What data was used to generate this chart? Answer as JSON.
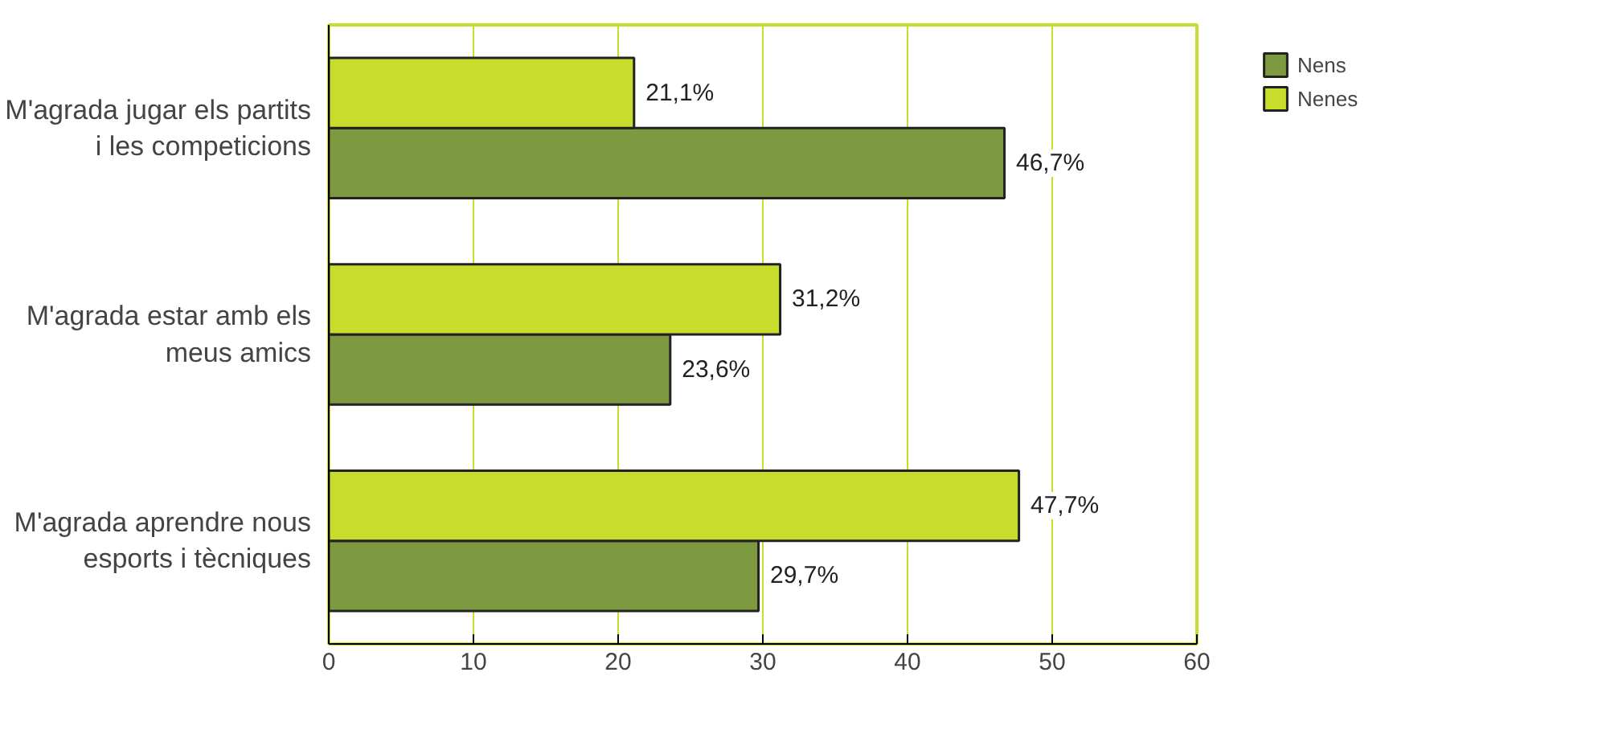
{
  "chart_data": {
    "type": "bar",
    "orientation": "horizontal",
    "categories": [
      "M'agrada jugar els partits i les competicions",
      "M'agrada estar amb els meus amics",
      "M'agrada aprendre nous esports i tècniques"
    ],
    "series": [
      {
        "name": "Nens",
        "color": "#7d9a40",
        "values": [
          46.7,
          23.6,
          29.7
        ],
        "value_labels": [
          "46,7%",
          "23,6%",
          "29,7%"
        ]
      },
      {
        "name": "Nenes",
        "color": "#c8dc2c",
        "values": [
          21.1,
          31.2,
          47.7
        ],
        "value_labels": [
          "21,1%",
          "31,2%",
          "47,7%"
        ]
      }
    ],
    "xlim": [
      0,
      60
    ],
    "xticks": [
      0,
      10,
      20,
      30,
      40,
      50,
      60
    ],
    "grid": "x",
    "legend": "top right"
  }
}
